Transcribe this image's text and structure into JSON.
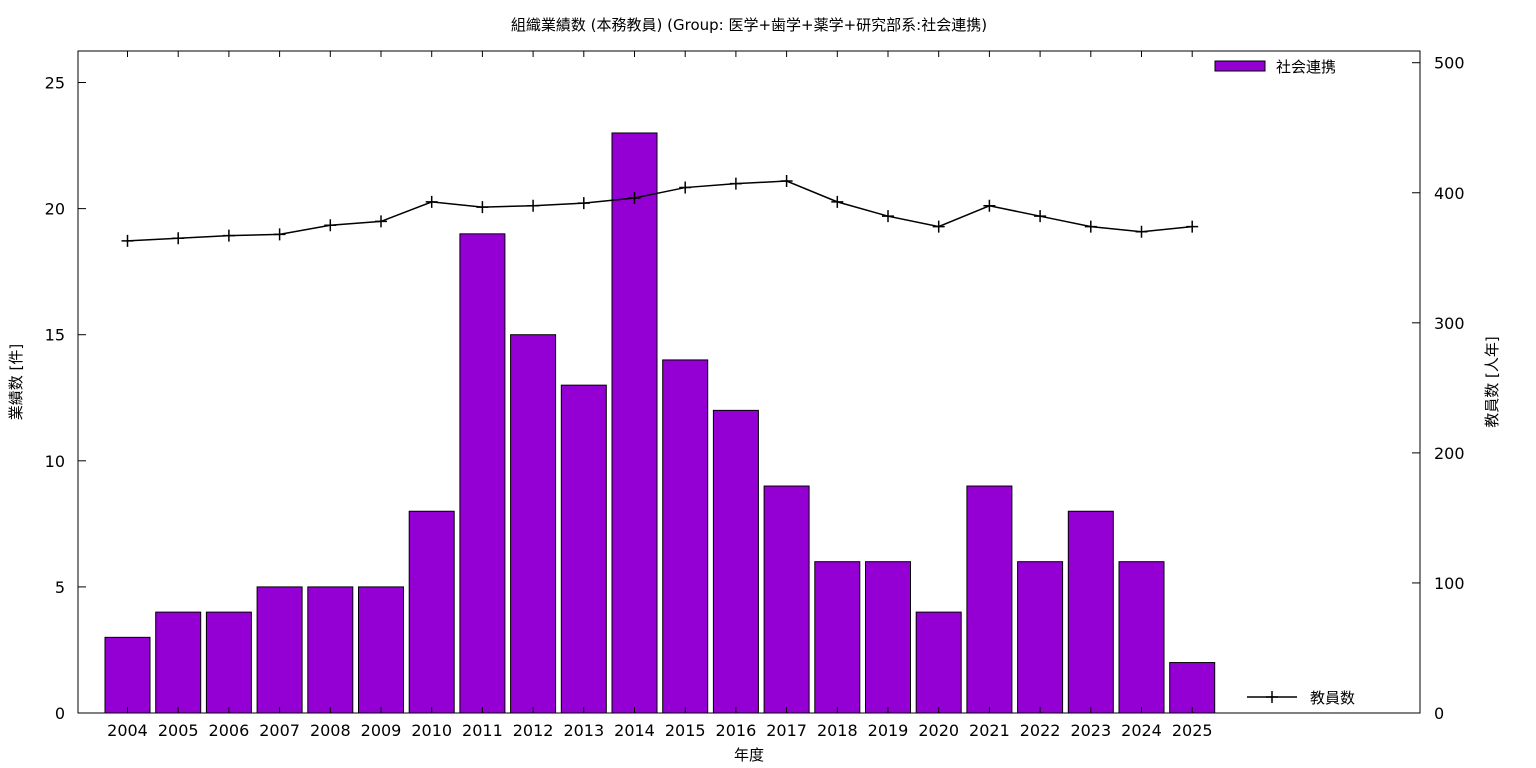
{
  "chart_data": {
    "type": "bar",
    "title": "組織業績数 (本務教員) (Group: 医学+歯学+薬学+研究部系:社会連携)",
    "xlabel": "年度",
    "ylabel": "業績数 [件]",
    "y2label": "教員数 [人年]",
    "categories": [
      "2004",
      "2005",
      "2006",
      "2007",
      "2008",
      "2009",
      "2010",
      "2011",
      "2012",
      "2013",
      "2014",
      "2015",
      "2016",
      "2017",
      "2018",
      "2019",
      "2020",
      "2021",
      "2022",
      "2023",
      "2024",
      "2025"
    ],
    "ylim": [
      0,
      26.25
    ],
    "y2lim": [
      0,
      509
    ],
    "yticks": [
      0,
      5,
      10,
      15,
      20,
      25
    ],
    "y2ticks": [
      0,
      100,
      200,
      300,
      400,
      500
    ],
    "grid": false,
    "legend_placement": "top-right",
    "series": [
      {
        "name": "社会連携",
        "kind": "bar",
        "axis": "left",
        "color": "#9400d3",
        "values": [
          3,
          4,
          4,
          5,
          5,
          5,
          8,
          19,
          15,
          13,
          23,
          14,
          12,
          9,
          6,
          6,
          4,
          9,
          6,
          8,
          6,
          2
        ]
      },
      {
        "name": "教員数",
        "kind": "line",
        "axis": "right",
        "color": "#000000",
        "values": [
          363,
          365,
          367,
          368,
          375,
          378,
          393,
          389,
          390,
          392,
          396,
          404,
          407,
          409,
          393,
          382,
          374,
          390,
          382,
          374,
          370,
          374
        ]
      }
    ]
  }
}
